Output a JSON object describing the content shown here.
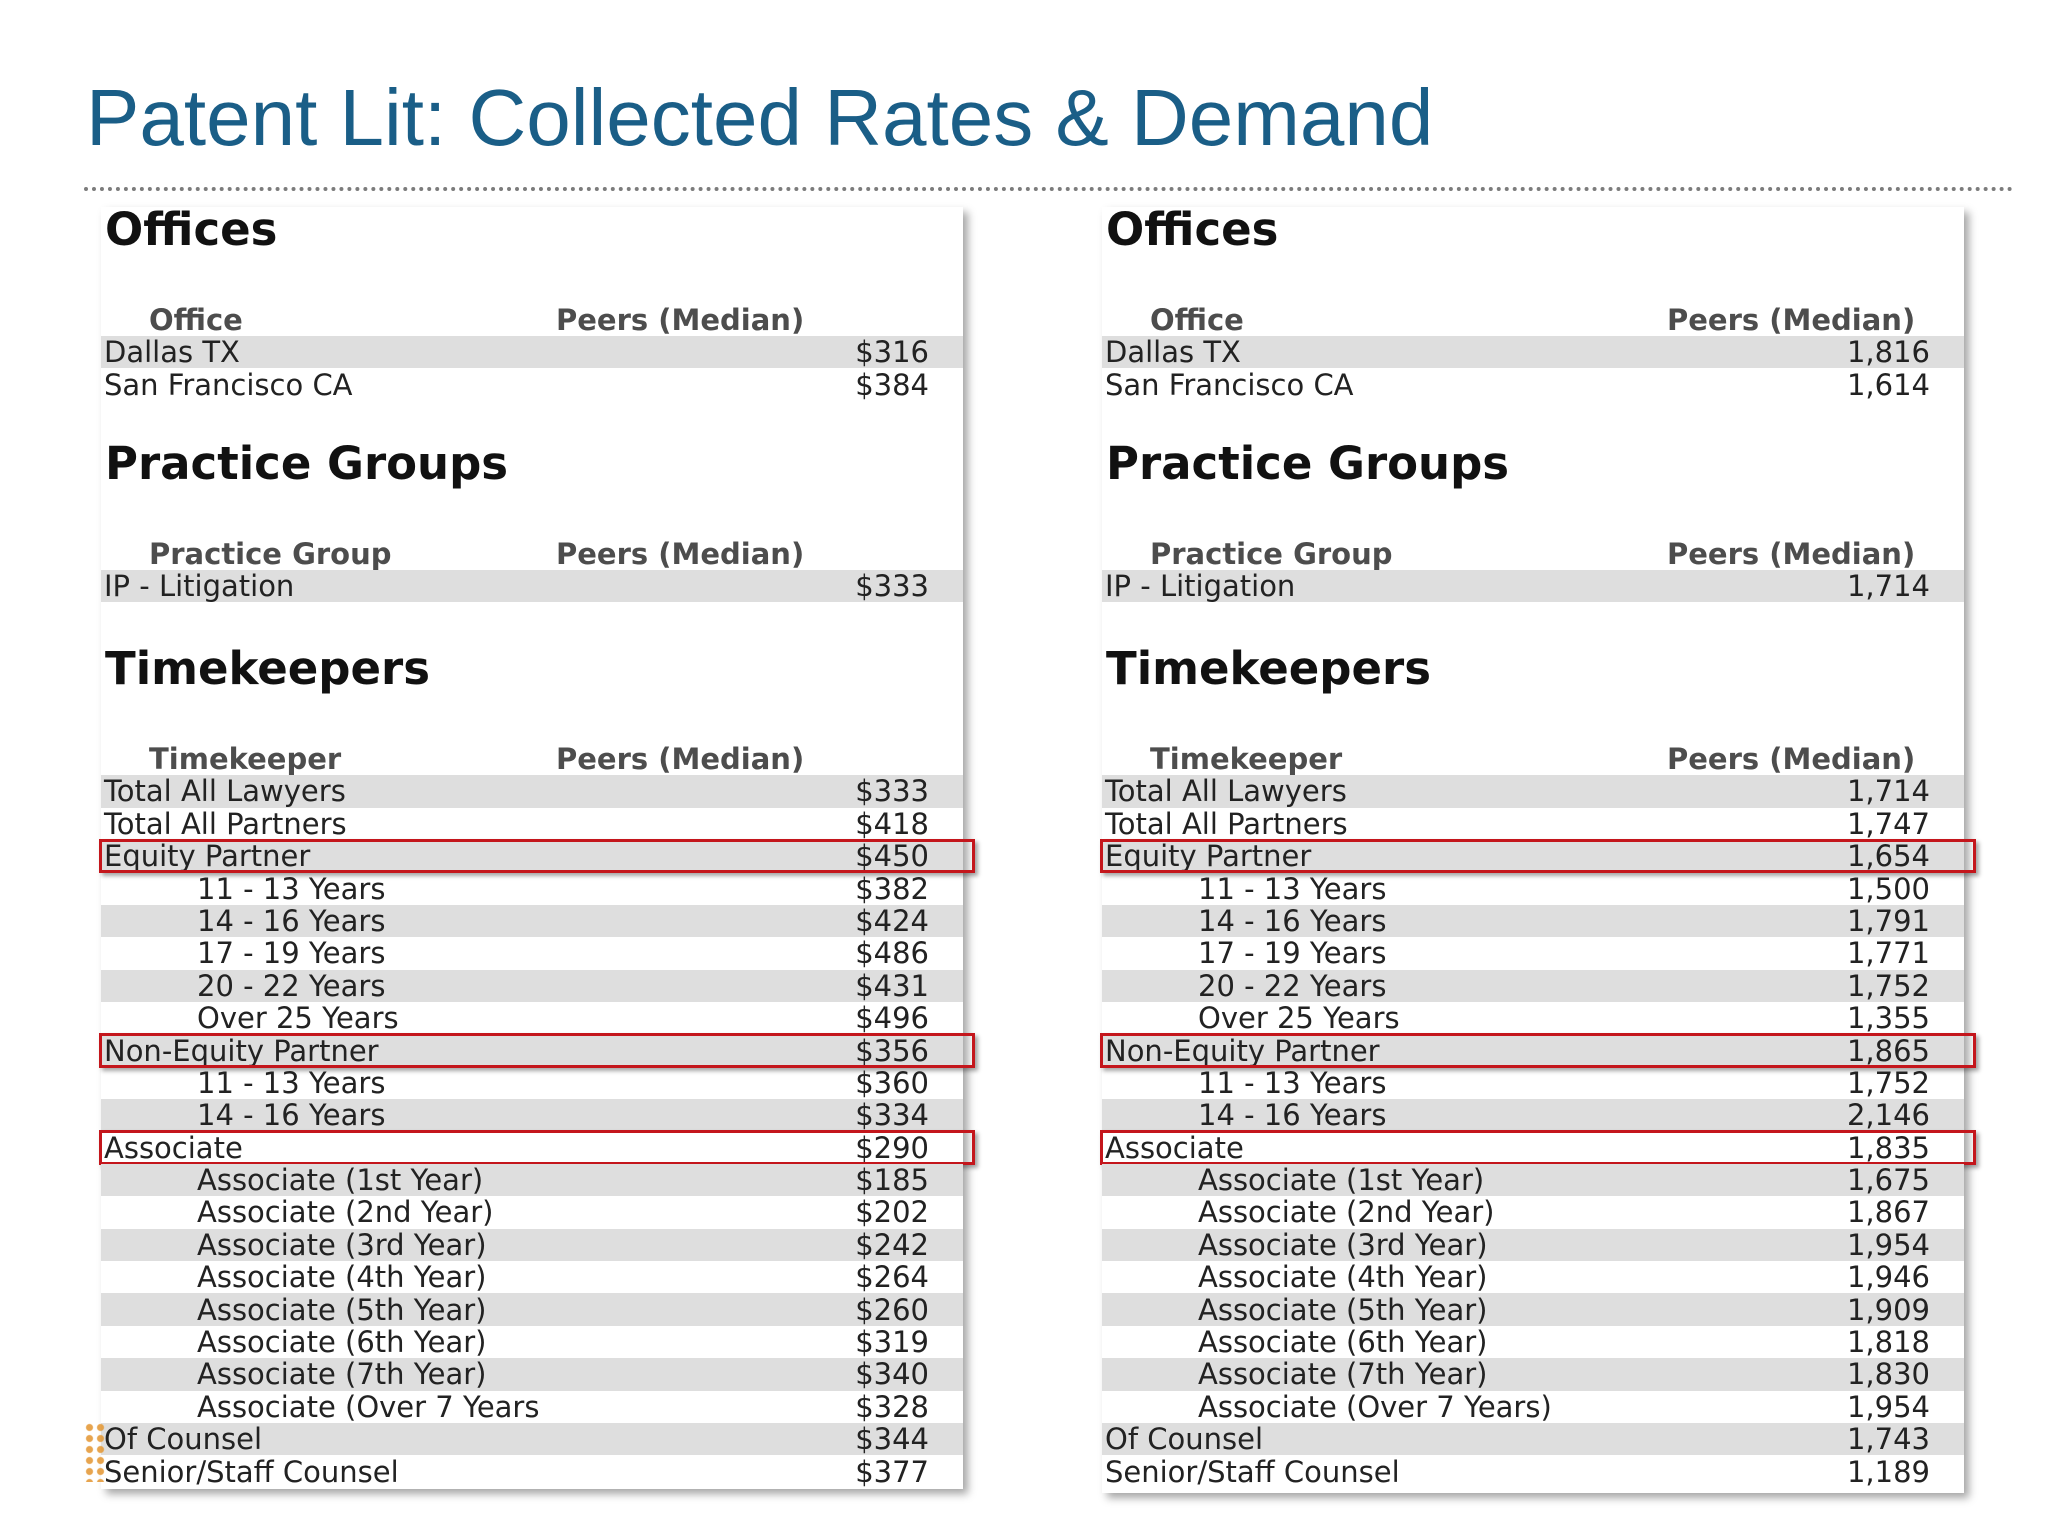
{
  "slide": {
    "title": "Patent Lit: Collected Rates & Demand"
  },
  "panels": [
    {
      "offices": {
        "title": "Offices",
        "col1": "Office",
        "col2": "Peers (Median)",
        "rows": [
          {
            "label": "Dallas TX",
            "value": "$316"
          },
          {
            "label": "San Francisco CA",
            "value": "$384"
          }
        ]
      },
      "practice": {
        "title": "Practice Groups",
        "col1": "Practice Group",
        "col2": "Peers (Median)",
        "rows": [
          {
            "label": "IP - Litigation",
            "value": "$333"
          }
        ]
      },
      "timekeepers": {
        "title": "Timekeepers",
        "col1": "Timekeeper",
        "col2": "Peers (Median)",
        "rows": [
          {
            "label": "Total All Lawyers",
            "value": "$333"
          },
          {
            "label": "Total All Partners",
            "value": "$418"
          },
          {
            "label": "Equity Partner",
            "value": "$450"
          },
          {
            "label": "11 - 13 Years",
            "value": "$382"
          },
          {
            "label": "14 - 16 Years",
            "value": "$424"
          },
          {
            "label": "17 - 19 Years",
            "value": "$486"
          },
          {
            "label": "20 - 22 Years",
            "value": "$431"
          },
          {
            "label": "Over 25 Years",
            "value": "$496"
          },
          {
            "label": "Non-Equity Partner",
            "value": "$356"
          },
          {
            "label": "11 - 13 Years",
            "value": "$360"
          },
          {
            "label": "14 - 16 Years",
            "value": "$334"
          },
          {
            "label": "Associate",
            "value": "$290"
          },
          {
            "label": "Associate (1st Year)",
            "value": "$185"
          },
          {
            "label": "Associate (2nd Year)",
            "value": "$202"
          },
          {
            "label": "Associate (3rd Year)",
            "value": "$242"
          },
          {
            "label": "Associate (4th Year)",
            "value": "$264"
          },
          {
            "label": "Associate (5th Year)",
            "value": "$260"
          },
          {
            "label": "Associate (6th Year)",
            "value": "$319"
          },
          {
            "label": "Associate (7th Year)",
            "value": "$340"
          },
          {
            "label": "Associate (Over 7 Years",
            "value": "$328"
          },
          {
            "label": "Of Counsel",
            "value": "$344"
          },
          {
            "label": "Senior/Staff Counsel",
            "value": "$377"
          }
        ]
      }
    },
    {
      "offices": {
        "title": "Offices",
        "col1": "Office",
        "col2": "Peers (Median)",
        "rows": [
          {
            "label": "Dallas TX",
            "value": "1,816"
          },
          {
            "label": "San Francisco CA",
            "value": "1,614"
          }
        ]
      },
      "practice": {
        "title": "Practice Groups",
        "col1": "Practice Group",
        "col2": "Peers (Median)",
        "rows": [
          {
            "label": "IP - Litigation",
            "value": "1,714"
          }
        ]
      },
      "timekeepers": {
        "title": "Timekeepers",
        "col1": "Timekeeper",
        "col2": "Peers (Median)",
        "rows": [
          {
            "label": "Total All Lawyers",
            "value": "1,714"
          },
          {
            "label": "Total All Partners",
            "value": "1,747"
          },
          {
            "label": "Equity Partner",
            "value": "1,654"
          },
          {
            "label": "11 - 13 Years",
            "value": "1,500"
          },
          {
            "label": "14 - 16 Years",
            "value": "1,791"
          },
          {
            "label": "17 - 19 Years",
            "value": "1,771"
          },
          {
            "label": "20 - 22 Years",
            "value": "1,752"
          },
          {
            "label": "Over 25 Years",
            "value": "1,355"
          },
          {
            "label": "Non-Equity Partner",
            "value": "1,865"
          },
          {
            "label": "11 - 13 Years",
            "value": "1,752"
          },
          {
            "label": "14 - 16 Years",
            "value": "2,146"
          },
          {
            "label": "Associate",
            "value": "1,835"
          },
          {
            "label": "Associate (1st Year)",
            "value": "1,675"
          },
          {
            "label": "Associate (2nd Year)",
            "value": "1,867"
          },
          {
            "label": "Associate (3rd Year)",
            "value": "1,954"
          },
          {
            "label": "Associate (4th Year)",
            "value": "1,946"
          },
          {
            "label": "Associate (5th Year)",
            "value": "1,909"
          },
          {
            "label": "Associate (6th Year)",
            "value": "1,818"
          },
          {
            "label": "Associate (7th Year)",
            "value": "1,830"
          },
          {
            "label": "Associate (Over 7 Years)",
            "value": "1,954"
          },
          {
            "label": "Of Counsel",
            "value": "1,743"
          },
          {
            "label": "Senior/Staff Counsel",
            "value": "1,189"
          }
        ]
      }
    }
  ],
  "colors": {
    "title": "#1a5e87",
    "highlight_box": "#c4161c",
    "row_shade": "#dedede"
  }
}
